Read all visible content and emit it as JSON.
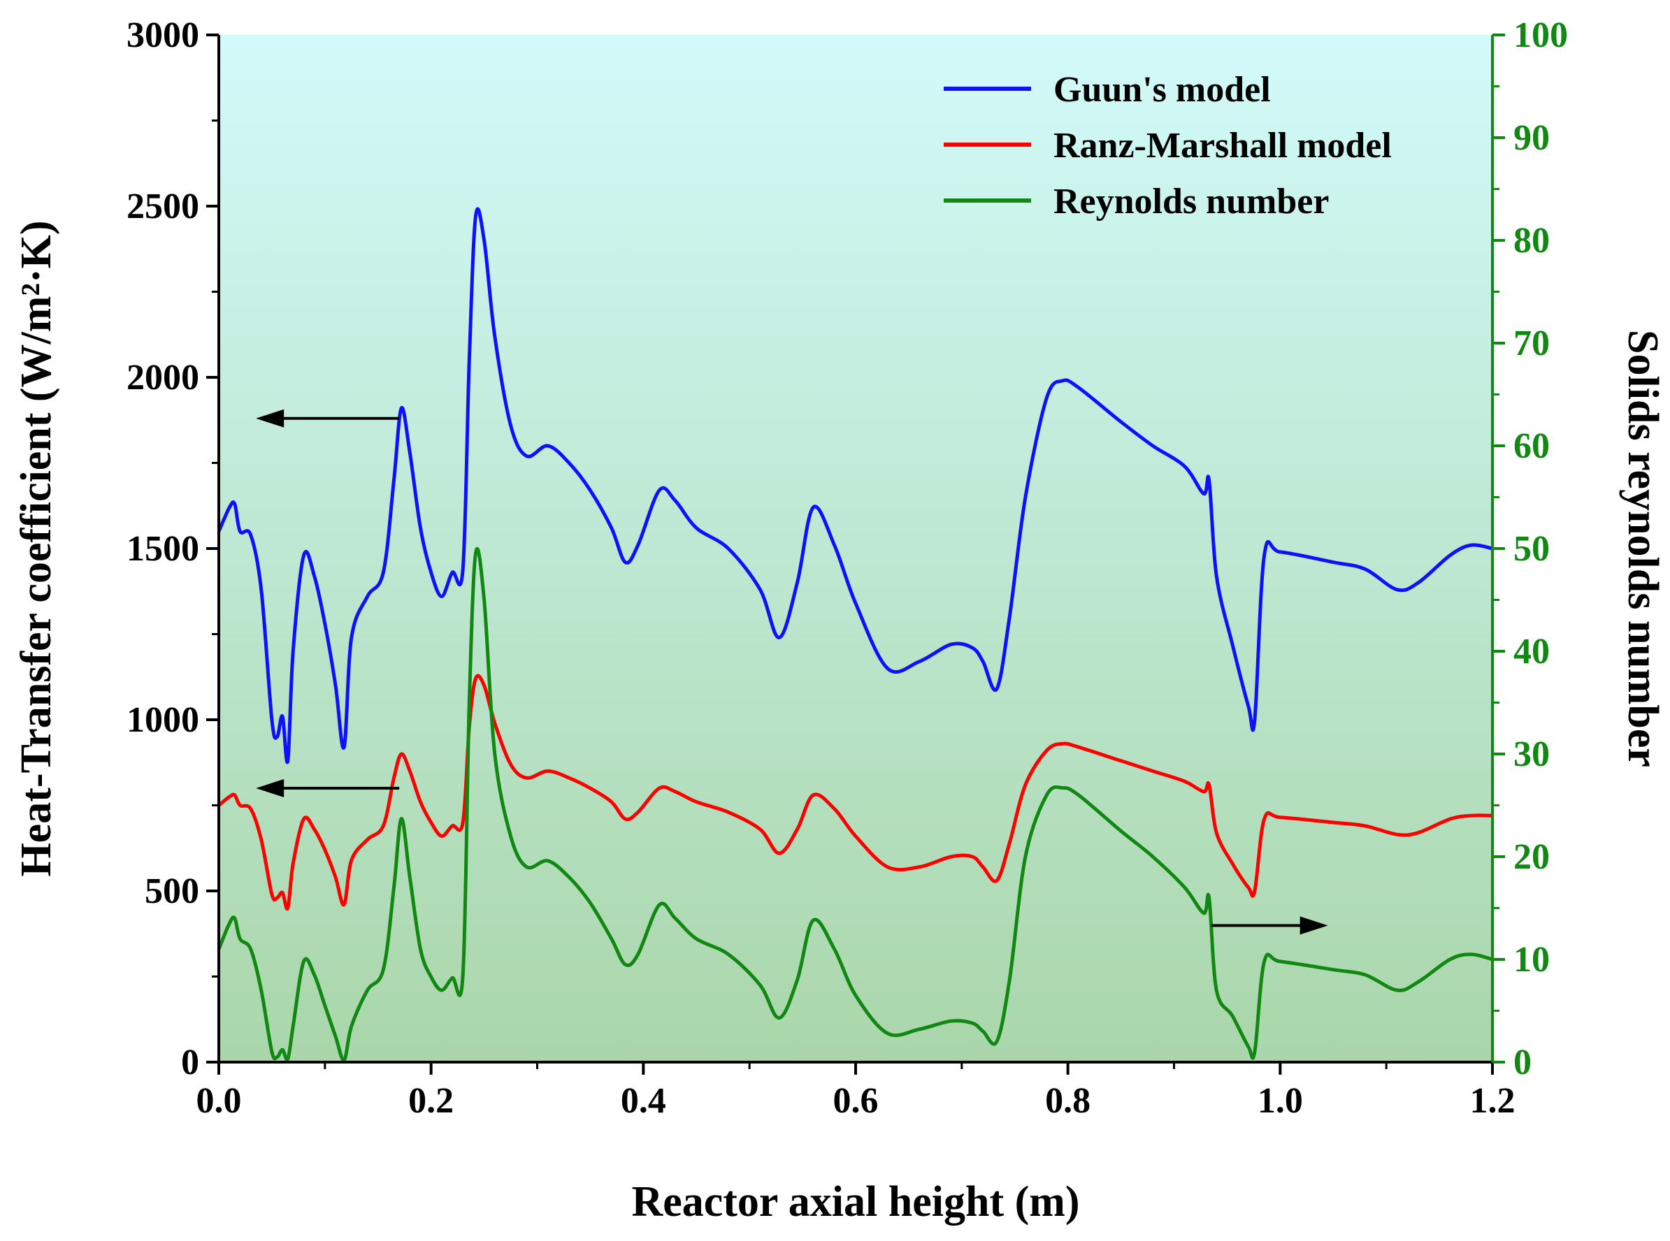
{
  "chart_data": {
    "type": "line",
    "xlabel": "Reactor axial height (m)",
    "ylabel_left": "Heat-Transfer coefficient (W/m²·K)",
    "ylabel_right": "Solids reynolds number",
    "xlim": [
      0.0,
      1.2
    ],
    "ylim_left": [
      0,
      3000
    ],
    "ylim_right": [
      0,
      100
    ],
    "xticks": [
      "0.0",
      "0.2",
      "0.4",
      "0.6",
      "0.8",
      "1.0",
      "1.2"
    ],
    "yticks_left": [
      "0",
      "500",
      "1000",
      "1500",
      "2000",
      "2500",
      "3000"
    ],
    "yticks_right": [
      "0",
      "10",
      "20",
      "30",
      "40",
      "50",
      "60",
      "70",
      "80",
      "90",
      "100"
    ],
    "legend_position": "top-right",
    "colors": {
      "guun": "#1010ff",
      "ranz": "#ff0000",
      "reynolds": "#118811",
      "bg_top": "#d2fafa",
      "bg_bottom": "#aad6aa",
      "right_axis": "#118811"
    },
    "series": [
      {
        "name": "Guun's model",
        "axis": "left",
        "x": [
          0.0,
          0.01,
          0.015,
          0.02,
          0.03,
          0.04,
          0.05,
          0.055,
          0.06,
          0.065,
          0.07,
          0.08,
          0.09,
          0.1,
          0.11,
          0.118,
          0.125,
          0.14,
          0.155,
          0.165,
          0.172,
          0.18,
          0.19,
          0.2,
          0.21,
          0.22,
          0.23,
          0.236,
          0.242,
          0.25,
          0.26,
          0.275,
          0.29,
          0.31,
          0.33,
          0.35,
          0.37,
          0.383,
          0.395,
          0.415,
          0.43,
          0.45,
          0.48,
          0.51,
          0.528,
          0.545,
          0.56,
          0.58,
          0.6,
          0.63,
          0.66,
          0.69,
          0.71,
          0.72,
          0.733,
          0.745,
          0.76,
          0.78,
          0.795,
          0.81,
          0.85,
          0.88,
          0.91,
          0.928,
          0.933,
          0.94,
          0.955,
          0.97,
          0.976,
          0.985,
          1.0,
          1.05,
          1.08,
          1.11,
          1.13,
          1.16,
          1.18,
          1.2
        ],
        "values": [
          1550,
          1620,
          1630,
          1550,
          1540,
          1380,
          1000,
          950,
          1010,
          880,
          1200,
          1480,
          1420,
          1280,
          1100,
          920,
          1240,
          1360,
          1430,
          1700,
          1910,
          1780,
          1560,
          1430,
          1360,
          1430,
          1440,
          2050,
          2470,
          2400,
          2120,
          1860,
          1770,
          1800,
          1750,
          1670,
          1560,
          1460,
          1510,
          1670,
          1640,
          1560,
          1500,
          1380,
          1240,
          1400,
          1620,
          1510,
          1340,
          1150,
          1170,
          1220,
          1210,
          1170,
          1090,
          1300,
          1650,
          1940,
          1990,
          1970,
          1870,
          1800,
          1740,
          1660,
          1700,
          1420,
          1220,
          1040,
          1000,
          1480,
          1490,
          1460,
          1440,
          1380,
          1400,
          1480,
          1510,
          1500
        ]
      },
      {
        "name": "Ranz-Marshall model",
        "axis": "left",
        "x": [
          0.0,
          0.01,
          0.015,
          0.02,
          0.03,
          0.04,
          0.05,
          0.055,
          0.06,
          0.065,
          0.07,
          0.08,
          0.09,
          0.1,
          0.11,
          0.118,
          0.125,
          0.14,
          0.155,
          0.165,
          0.172,
          0.18,
          0.19,
          0.2,
          0.21,
          0.22,
          0.23,
          0.236,
          0.242,
          0.25,
          0.26,
          0.275,
          0.29,
          0.31,
          0.33,
          0.35,
          0.37,
          0.383,
          0.395,
          0.415,
          0.43,
          0.45,
          0.48,
          0.51,
          0.528,
          0.545,
          0.56,
          0.58,
          0.6,
          0.63,
          0.66,
          0.69,
          0.71,
          0.72,
          0.733,
          0.745,
          0.76,
          0.78,
          0.795,
          0.81,
          0.85,
          0.88,
          0.91,
          0.928,
          0.933,
          0.94,
          0.955,
          0.97,
          0.976,
          0.985,
          1.0,
          1.05,
          1.08,
          1.11,
          1.13,
          1.16,
          1.18,
          1.2
        ],
        "values": [
          750,
          775,
          780,
          750,
          740,
          650,
          490,
          480,
          495,
          450,
          580,
          710,
          680,
          620,
          540,
          460,
          590,
          650,
          690,
          830,
          900,
          850,
          760,
          700,
          660,
          690,
          700,
          980,
          1120,
          1100,
          990,
          870,
          830,
          850,
          830,
          800,
          760,
          710,
          730,
          800,
          790,
          760,
          730,
          680,
          610,
          680,
          780,
          740,
          660,
          570,
          570,
          600,
          600,
          570,
          530,
          640,
          810,
          910,
          930,
          920,
          880,
          850,
          820,
          790,
          810,
          670,
          580,
          510,
          500,
          710,
          715,
          700,
          690,
          665,
          670,
          710,
          720,
          720
        ]
      },
      {
        "name": "Reynolds number",
        "axis": "right",
        "x": [
          0.0,
          0.01,
          0.015,
          0.02,
          0.03,
          0.04,
          0.05,
          0.055,
          0.06,
          0.065,
          0.07,
          0.08,
          0.09,
          0.1,
          0.11,
          0.118,
          0.125,
          0.14,
          0.155,
          0.165,
          0.172,
          0.18,
          0.19,
          0.2,
          0.21,
          0.22,
          0.23,
          0.236,
          0.242,
          0.25,
          0.26,
          0.275,
          0.29,
          0.31,
          0.33,
          0.35,
          0.37,
          0.383,
          0.395,
          0.415,
          0.43,
          0.45,
          0.48,
          0.51,
          0.528,
          0.545,
          0.56,
          0.58,
          0.6,
          0.63,
          0.66,
          0.69,
          0.71,
          0.72,
          0.733,
          0.745,
          0.76,
          0.78,
          0.795,
          0.81,
          0.85,
          0.88,
          0.91,
          0.928,
          0.933,
          0.94,
          0.955,
          0.97,
          0.976,
          0.985,
          1.0,
          1.05,
          1.08,
          1.11,
          1.13,
          1.16,
          1.18,
          1.2
        ],
        "values": [
          11,
          13.5,
          14,
          12,
          11,
          7,
          1,
          0.5,
          1.2,
          0.3,
          3.5,
          9.8,
          8.5,
          5.5,
          2.5,
          0.2,
          3.5,
          7,
          9,
          17,
          23.7,
          18,
          11,
          8.3,
          7,
          8.2,
          8.5,
          35,
          49.5,
          45,
          30,
          22,
          19,
          19.6,
          18,
          15.5,
          12,
          9.5,
          10.5,
          15.3,
          14,
          12,
          10.5,
          7.5,
          4.3,
          8,
          13.8,
          11,
          6.5,
          2.8,
          3.2,
          4,
          3.8,
          3,
          2,
          8,
          20,
          26,
          26.7,
          26,
          22.5,
          20,
          17,
          14.5,
          16,
          7,
          4.5,
          1.5,
          1,
          9.8,
          9.8,
          9,
          8.5,
          7,
          7.8,
          10,
          10.5,
          10
        ]
      }
    ],
    "annotations": [
      "left arrow at Guun's model peak",
      "left arrow at Ranz-Marshall peak",
      "right arrow pointing to right axis"
    ]
  }
}
